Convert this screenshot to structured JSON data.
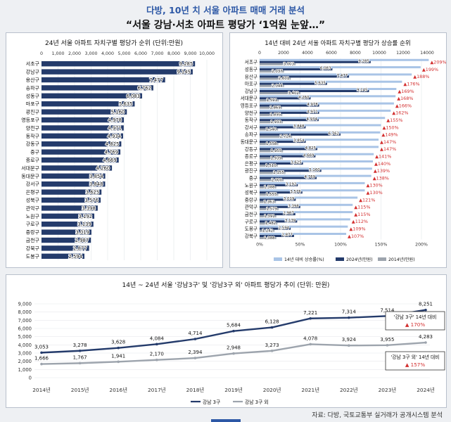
{
  "header": {
    "subtitle": "다방, 10년 치 서울 아파트 매매 거래 분석",
    "title": "“서울 강남·서초 아파트 평당가 ‘1억원 눈앞…”"
  },
  "source": "자료: 다방, 국토교통부 실거래가 공개시스템 분석",
  "colors": {
    "navy": "#243b6b",
    "light": "#a9c4e6",
    "gray": "#9da4ad",
    "red": "#d32f2f"
  },
  "chart_data": [
    {
      "type": "bar",
      "title": "24년 서울 아파트 자치구별 평당가 순위 (단위:만원)",
      "xlim": [
        0,
        10000
      ],
      "ticks": [
        "0",
        "1,000",
        "2,000",
        "3,000",
        "4,000",
        "5,000",
        "6,000",
        "7,000",
        "8,000",
        "9,000",
        "10,000"
      ],
      "categories": [
        "서초구",
        "강남구",
        "용산구",
        "송파구",
        "성동구",
        "마포구",
        "광진구",
        "영등포구",
        "양천구",
        "동작구",
        "강동구",
        "중구",
        "종로구",
        "서대문구",
        "동대문구",
        "강서구",
        "은평구",
        "성북구",
        "관악구",
        "노원구",
        "구로구",
        "중랑구",
        "금천구",
        "강북구",
        "도봉구"
      ],
      "values": [
        9285,
        9145,
        7477,
        6762,
        6083,
        5635,
        5160,
        4978,
        4971,
        4934,
        4825,
        4769,
        4669,
        4260,
        3854,
        3848,
        3625,
        3576,
        3398,
        3192,
        3139,
        3019,
        2987,
        2877,
        2594
      ],
      "labels": [
        "9,285",
        "9,145",
        "7,477",
        "6,762",
        "6,083",
        "5,635",
        "5,160",
        "4,978",
        "4,971",
        "4,934",
        "4,825",
        "4,769",
        "4,669",
        "4,260",
        "3,854",
        "3,848",
        "3,625",
        "3,576",
        "3,398",
        "3,192",
        "3,139",
        "3,019",
        "2,987",
        "2,877",
        "2,594"
      ]
    },
    {
      "type": "bar",
      "title": "14년 대비 24년 서울 아파트 자치구별 평당가 상승률 순위",
      "top_ticks": [
        "0",
        "2000",
        "4000",
        "6000",
        "8000",
        "10000",
        "12000",
        "14000"
      ],
      "bottom_ticks": [
        "0%",
        "50%",
        "100%",
        "150%",
        "200%"
      ],
      "legend": [
        "14년 대비 상승률(%)",
        "2024년(만원)",
        "2014년(만원)"
      ],
      "categories": [
        "서초구",
        "성동구",
        "용산구",
        "마포구",
        "강남구",
        "서대문구",
        "영등포구",
        "양천구",
        "동작구",
        "강서구",
        "송파구",
        "동대문구",
        "강동구",
        "종로구",
        "은평구",
        "광진구",
        "중구",
        "노원구",
        "성북구",
        "중랑구",
        "관악구",
        "금천구",
        "구로구",
        "도봉구",
        "강북구"
      ],
      "series": [
        {
          "name": "2024년(만원)",
          "values": [
            9285,
            6083,
            7477,
            5635,
            9145,
            4260,
            4978,
            4971,
            4934,
            3848,
            6762,
            3854,
            4825,
            4669,
            3625,
            5160,
            4769,
            3192,
            3576,
            3019,
            3398,
            2987,
            3139,
            2594,
            2877
          ],
          "labels": [
            "9,285",
            "6,083",
            "7,477",
            "5,635",
            "9,145",
            "4,260",
            "4,978",
            "4,971",
            "4,934",
            "3,848",
            "6,762",
            "3,854",
            "4,825",
            "4,669",
            "3,625",
            "5,160",
            "4,769",
            "3,192",
            "3,576",
            "3,019",
            "3,398",
            "2,987",
            "3,139",
            "2,594",
            "2,877"
          ]
        },
        {
          "name": "2014년(만원)",
          "values": [
            3003,
            2037,
            2601,
            2044,
            3402,
            1591,
            1869,
            1895,
            1933,
            1540,
            2714,
            1558,
            1955,
            1939,
            1510,
            2155,
            2000,
            1388,
            1555,
            1363,
            1579,
            1391,
            1482,
            1242,
            1388
          ],
          "labels": [
            "3,003",
            "2,037",
            "2,601",
            "2,044",
            "3,402",
            "1,591",
            "1,869",
            "1,895",
            "1,933",
            "1,540",
            "2,714",
            "1,558",
            "1,955",
            "1,939",
            "1,510",
            "2,155",
            "2,000",
            "1,388",
            "1,555",
            "1,363",
            "1,579",
            "1,391",
            "1,482",
            "1,242",
            "1,388"
          ]
        },
        {
          "name": "14년 대비 상승률(%)",
          "values": [
            209,
            199,
            188,
            176,
            169,
            168,
            166,
            162,
            155,
            150,
            149,
            147,
            147,
            141,
            140,
            139,
            138,
            130,
            130,
            121,
            115,
            115,
            112,
            109,
            107
          ],
          "labels": [
            "▲209%",
            "▲199%",
            "▲188%",
            "▲176%",
            "▲169%",
            "▲168%",
            "▲166%",
            "▲162%",
            "▲155%",
            "▲150%",
            "▲149%",
            "▲147%",
            "▲147%",
            "▲141%",
            "▲140%",
            "▲139%",
            "▲138%",
            "▲130%",
            "▲130%",
            "▲121%",
            "▲115%",
            "▲115%",
            "▲112%",
            "▲109%",
            "▲107%"
          ]
        }
      ]
    },
    {
      "type": "line",
      "title": "14년 ~ 24년 서울 '강남3구' 및 '강남3구 외' 아파트 평당가 추이 (단위: 만원)",
      "x": [
        "2014년",
        "2015년",
        "2016년",
        "2017년",
        "2018년",
        "2019년",
        "2020년",
        "2021년",
        "2022년",
        "2023년",
        "2024년"
      ],
      "ylim": [
        0,
        9000
      ],
      "yticks": [
        "0",
        "1,000",
        "2,000",
        "3,000",
        "4,000",
        "5,000",
        "6,000",
        "7,000",
        "8,000",
        "9,000"
      ],
      "series": [
        {
          "name": "강남 3구",
          "values": [
            3053,
            3278,
            3628,
            4084,
            4714,
            5684,
            6128,
            7221,
            7314,
            7514,
            8251
          ],
          "labels": [
            "3,053",
            "3,278",
            "3,628",
            "4,084",
            "4,714",
            "5,684",
            "6,128",
            "7,221",
            "7,314",
            "7,514",
            "8,251"
          ]
        },
        {
          "name": "강남 3구 외",
          "values": [
            1666,
            1767,
            1941,
            2170,
            2394,
            2948,
            3273,
            4078,
            3924,
            3955,
            4283
          ],
          "labels": [
            "1,666",
            "1,767",
            "1,941",
            "2,170",
            "2,394",
            "2,948",
            "3,273",
            "4,078",
            "3,924",
            "3,955",
            "4,283"
          ]
        }
      ],
      "annotations": [
        {
          "line1": "'강남 3구' 14년 대비",
          "line2": "▲ 170%"
        },
        {
          "line1": "'강남 3구 외' 14년 대비",
          "line2": "▲ 157%"
        }
      ]
    }
  ]
}
